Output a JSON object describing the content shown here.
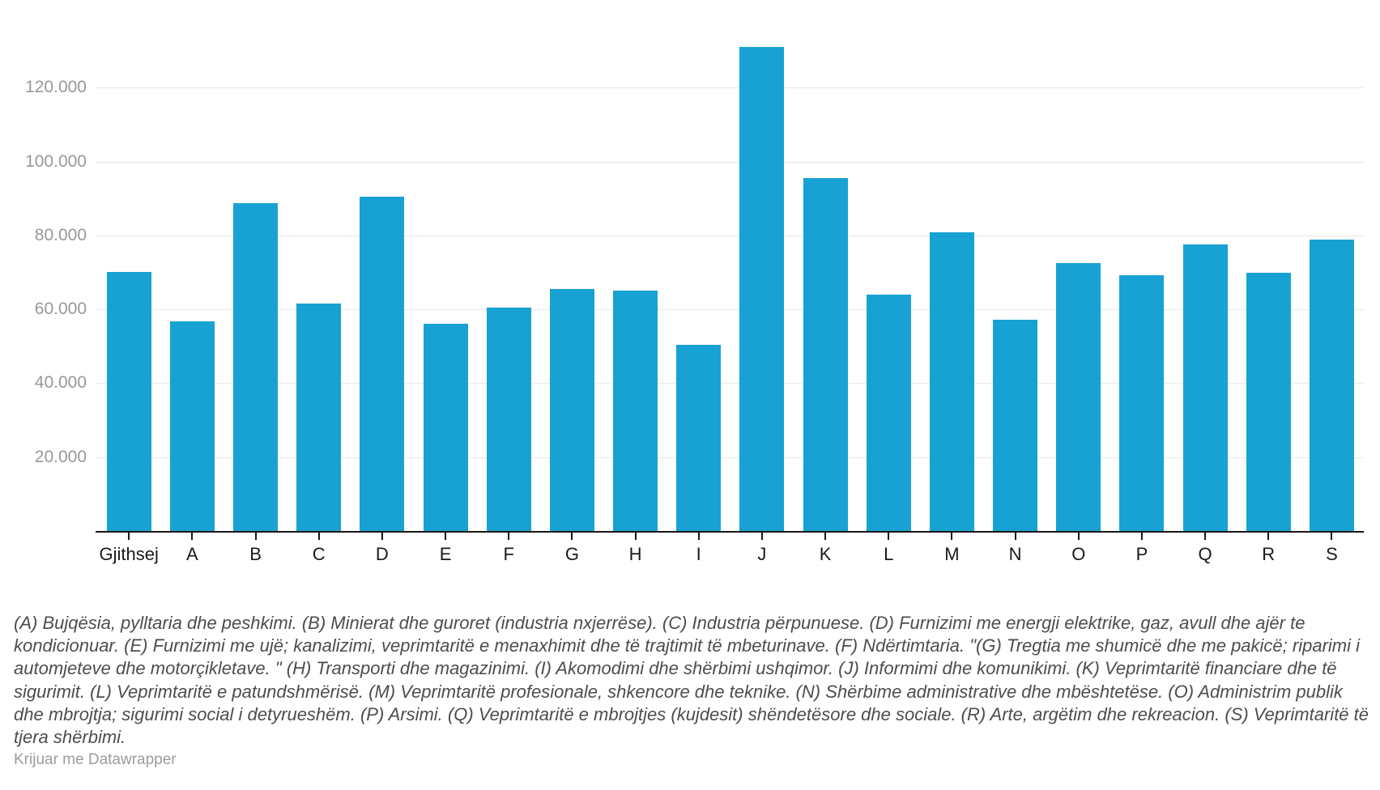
{
  "chart_data": {
    "type": "bar",
    "categories": [
      "Gjithsej",
      "A",
      "B",
      "C",
      "D",
      "E",
      "F",
      "G",
      "H",
      "I",
      "J",
      "K",
      "L",
      "M",
      "N",
      "O",
      "P",
      "Q",
      "R",
      "S"
    ],
    "values": [
      70000,
      56800,
      88800,
      61500,
      90400,
      56100,
      60400,
      65500,
      65100,
      50400,
      131000,
      95500,
      64000,
      80900,
      57200,
      72500,
      69300,
      77600,
      69800,
      78900
    ],
    "title": "",
    "xlabel": "",
    "ylabel": "",
    "ylim": [
      0,
      140000
    ],
    "yticks": [
      20000,
      40000,
      60000,
      80000,
      100000,
      120000
    ],
    "ytick_labels": [
      "20.000",
      "40.000",
      "60.000",
      "80.000",
      "100.000",
      "120.000"
    ],
    "grid": "horizontal-only",
    "legend": "none",
    "bar_color": "#18a2d3",
    "gridline_color": "#e8e8e8",
    "axis_color": "#161616",
    "ytick_text_color": "#989898",
    "xtick_text_color": "#1a1a1a"
  },
  "footer": {
    "notes": "(A) Bujqësia, pylltaria dhe peshkimi. (B) Minierat dhe guroret (industria nxjerrëse). (C) Industria përpunuese. (D) Furnizimi me energji elektrike, gaz, avull dhe ajër te kondicionuar. (E) Furnizimi me ujë; kanalizimi, veprimtaritë e menaxhimit dhe të trajtimit të mbeturinave. (F) Ndërtimtaria. \"(G) Tregtia me shumicë dhe me pakicë; riparimi i automjeteve dhe motorçikletave. \" (H) Transporti dhe magazinimi. (I) Akomodimi dhe shërbimi ushqimor. (J) Informimi dhe komunikimi. (K) Veprimtaritë financiare dhe të sigurimit. (L) Veprimtaritë e patundshmërisë. (M) Veprimtaritë profesionale, shkencore dhe teknike. (N) Shërbime administrative dhe mbështetëse. (O) Administrim publik dhe mbrojtja; sigurimi social i detyrueshëm. (P) Arsimi. (Q) Veprimtaritë e mbrojtjes (kujdesit) shëndetësore dhe sociale. (R) Arte, argëtim dhe rekreacion. (S) Veprimtaritë të tjera shërbimi.",
    "attribution": "Krijuar me Datawrapper"
  }
}
